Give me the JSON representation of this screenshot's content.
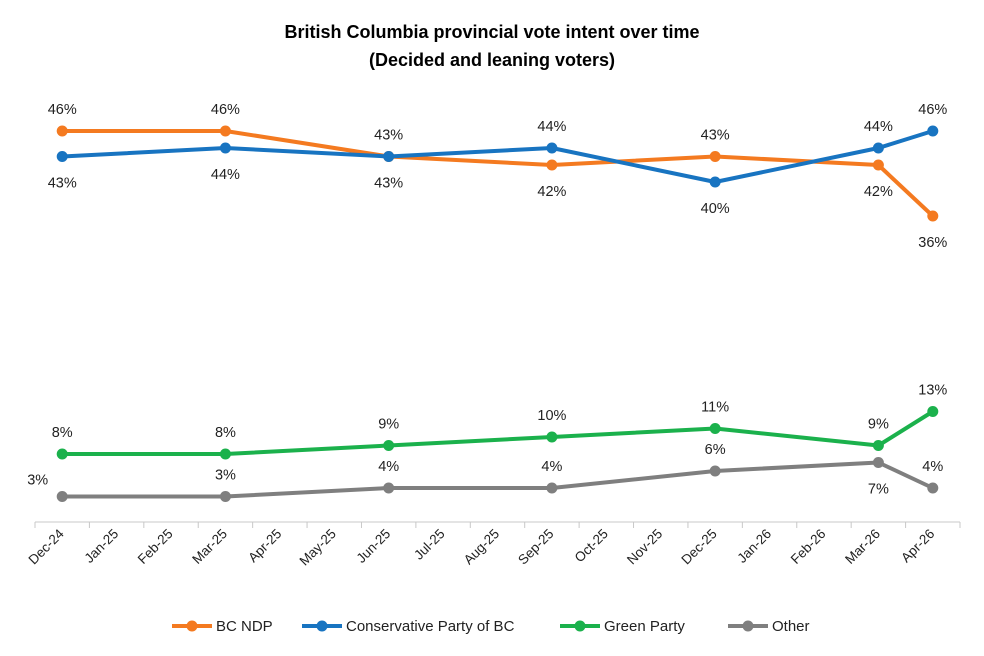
{
  "chart_data": {
    "type": "line",
    "title": "British Columbia provincial vote intent over time",
    "subtitle": "(Decided and leaning voters)",
    "x": [
      "Dec-24",
      "Jan-25",
      "Feb-25",
      "Mar-25",
      "Apr-25",
      "May-25",
      "Jun-25",
      "Jul-25",
      "Aug-25",
      "Sep-25",
      "Oct-25",
      "Nov-25",
      "Dec-25",
      "Jan-26",
      "Feb-26",
      "Mar-26",
      "Apr-26"
    ],
    "ylim": [
      0,
      50
    ],
    "grid": false,
    "legend": "bottom",
    "series": [
      {
        "name": "BC NDP",
        "color": "#F47A20",
        "points": [
          {
            "x": "Dec-24",
            "y": 46
          },
          {
            "x": "Mar-25",
            "y": 46
          },
          {
            "x": "Jun-25",
            "y": 43
          },
          {
            "x": "Sep-25",
            "y": 42
          },
          {
            "x": "Dec-25",
            "y": 43
          },
          {
            "x": "Mar-26",
            "y": 42
          },
          {
            "x": "Apr-26",
            "y": 36
          }
        ],
        "labels": [
          "46%",
          "46%",
          "43%",
          "42%",
          "43%",
          "42%",
          "36%"
        ]
      },
      {
        "name": "Conservative Party of BC",
        "color": "#1874C1",
        "points": [
          {
            "x": "Dec-24",
            "y": 43
          },
          {
            "x": "Mar-25",
            "y": 44
          },
          {
            "x": "Jun-25",
            "y": 43
          },
          {
            "x": "Sep-25",
            "y": 44
          },
          {
            "x": "Dec-25",
            "y": 40
          },
          {
            "x": "Mar-26",
            "y": 44
          },
          {
            "x": "Apr-26",
            "y": 46
          }
        ],
        "labels": [
          "43%",
          "44%",
          "43%",
          "44%",
          "40%",
          "44%",
          "46%"
        ]
      },
      {
        "name": "Green Party",
        "color": "#1BB14C",
        "points": [
          {
            "x": "Dec-24",
            "y": 8
          },
          {
            "x": "Mar-25",
            "y": 8
          },
          {
            "x": "Jun-25",
            "y": 9
          },
          {
            "x": "Sep-25",
            "y": 10
          },
          {
            "x": "Dec-25",
            "y": 11
          },
          {
            "x": "Mar-26",
            "y": 9
          },
          {
            "x": "Apr-26",
            "y": 13
          }
        ],
        "labels": [
          "8%",
          "8%",
          "9%",
          "10%",
          "11%",
          "9%",
          "13%"
        ]
      },
      {
        "name": "Other",
        "color": "#7F7F7F",
        "points": [
          {
            "x": "Dec-24",
            "y": 3
          },
          {
            "x": "Mar-25",
            "y": 3
          },
          {
            "x": "Jun-25",
            "y": 4
          },
          {
            "x": "Sep-25",
            "y": 4
          },
          {
            "x": "Dec-25",
            "y": 6
          },
          {
            "x": "Mar-26",
            "y": 7
          },
          {
            "x": "Apr-26",
            "y": 4
          }
        ],
        "labels": [
          "3%",
          "3%",
          "4%",
          "4%",
          "6%",
          "7%",
          "4%"
        ]
      }
    ]
  }
}
